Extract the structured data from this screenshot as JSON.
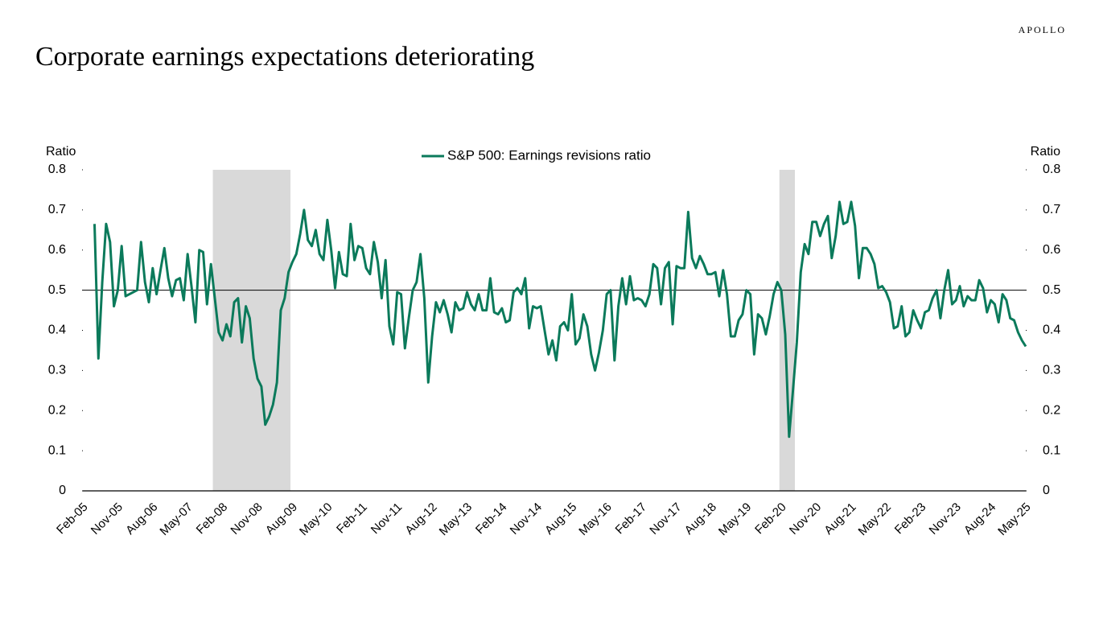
{
  "brand": "APOLLO",
  "chart_data": {
    "type": "line",
    "title": "Corporate earnings expectations deteriorating",
    "ylabel": "Ratio",
    "y2label": "Ratio",
    "xlim": [
      "2005-02",
      "2025-05"
    ],
    "categories": [
      "Feb-05",
      null,
      null,
      null,
      null,
      null,
      null,
      null,
      null,
      "Nov-05",
      null,
      null,
      null,
      null,
      null,
      null,
      null,
      null,
      "Aug-06",
      null,
      null,
      null,
      null,
      null,
      null,
      null,
      null,
      "May-07",
      null,
      null,
      null,
      null,
      null,
      null,
      null,
      null,
      "Feb-08",
      null,
      null,
      null,
      null,
      null,
      null,
      null,
      null,
      "Nov-08",
      null,
      null,
      null,
      null,
      null,
      null,
      null,
      null,
      "Aug-09",
      null,
      null,
      null,
      null,
      null,
      null,
      null,
      null,
      "May-10",
      null,
      null,
      null,
      null,
      null,
      null,
      null,
      null,
      "Feb-11",
      null,
      null,
      null,
      null,
      null,
      null,
      null,
      null,
      "Nov-11",
      null,
      null,
      null,
      null,
      null,
      null,
      null,
      null,
      "Aug-12",
      null,
      null,
      null,
      null,
      null,
      null,
      null,
      null,
      "May-13",
      null,
      null,
      null,
      null,
      null,
      null,
      null,
      null,
      "Feb-14",
      null,
      null,
      null,
      null,
      null,
      null,
      null,
      null,
      "Nov-14",
      null,
      null,
      null,
      null,
      null,
      null,
      null,
      null,
      "Aug-15",
      null,
      null,
      null,
      null,
      null,
      null,
      null,
      null,
      "May-16",
      null,
      null,
      null,
      null,
      null,
      null,
      null,
      null,
      "Feb-17",
      null,
      null,
      null,
      null,
      null,
      null,
      null,
      null,
      "Nov-17",
      null,
      null,
      null,
      null,
      null,
      null,
      null,
      null,
      "Aug-18",
      null,
      null,
      null,
      null,
      null,
      null,
      null,
      null,
      "May-19",
      null,
      null,
      null,
      null,
      null,
      null,
      null,
      null,
      "Feb-20",
      null,
      null,
      null,
      null,
      null,
      null,
      null,
      null,
      "Nov-20",
      null,
      null,
      null,
      null,
      null,
      null,
      null,
      null,
      "Aug-21",
      null,
      null,
      null,
      null,
      null,
      null,
      null,
      null,
      "May-22",
      null,
      null,
      null,
      null,
      null,
      null,
      null,
      null,
      "Feb-23",
      null,
      null,
      null,
      null,
      null,
      null,
      null,
      null,
      "Nov-23",
      null,
      null,
      null,
      null,
      null,
      null,
      null,
      null,
      "Aug-24",
      null,
      null,
      null,
      null,
      null,
      null,
      null,
      null,
      "May-25"
    ],
    "series": [
      {
        "name": "S&P 500: Earnings revisions ratio",
        "color": "#0b7a5b",
        "values": [
          null,
          null,
          null,
          0.665,
          0.33,
          0.52,
          0.665,
          0.62,
          0.46,
          0.5,
          0.61,
          0.485,
          0.49,
          0.495,
          0.5,
          0.62,
          0.52,
          0.47,
          0.555,
          0.49,
          0.55,
          0.605,
          0.53,
          0.485,
          0.525,
          0.53,
          0.475,
          0.59,
          0.51,
          0.42,
          0.6,
          0.595,
          0.465,
          0.565,
          0.48,
          0.395,
          0.375,
          0.415,
          0.385,
          0.47,
          0.48,
          0.37,
          0.46,
          0.43,
          0.33,
          0.28,
          0.26,
          0.165,
          0.185,
          0.215,
          0.27,
          0.45,
          0.48,
          0.545,
          0.57,
          0.59,
          0.64,
          0.7,
          0.625,
          0.61,
          0.65,
          0.59,
          0.575,
          0.675,
          0.6,
          0.505,
          0.595,
          0.54,
          0.535,
          0.665,
          0.575,
          0.61,
          0.605,
          0.555,
          0.54,
          0.62,
          0.57,
          0.48,
          0.575,
          0.41,
          0.365,
          0.495,
          0.49,
          0.355,
          0.43,
          0.5,
          0.52,
          0.59,
          0.48,
          0.27,
          0.385,
          0.47,
          0.445,
          0.475,
          0.44,
          0.395,
          0.47,
          0.45,
          0.455,
          0.495,
          0.465,
          0.45,
          0.49,
          0.45,
          0.45,
          0.53,
          0.445,
          0.44,
          0.455,
          0.42,
          0.425,
          0.495,
          0.505,
          0.49,
          0.53,
          0.405,
          0.46,
          0.455,
          0.46,
          0.4,
          0.34,
          0.375,
          0.325,
          0.41,
          0.42,
          0.4,
          0.49,
          0.365,
          0.38,
          0.44,
          0.41,
          0.34,
          0.3,
          0.345,
          0.4,
          0.49,
          0.5,
          0.325,
          0.46,
          0.53,
          0.465,
          0.535,
          0.475,
          0.48,
          0.475,
          0.46,
          0.49,
          0.565,
          0.555,
          0.465,
          0.555,
          0.57,
          0.415,
          0.56,
          0.555,
          0.555,
          0.695,
          0.58,
          0.555,
          0.585,
          0.565,
          0.54,
          0.54,
          0.545,
          0.485,
          0.55,
          0.49,
          0.385,
          0.385,
          0.425,
          0.44,
          0.5,
          0.49,
          0.34,
          0.44,
          0.43,
          0.39,
          0.435,
          0.49,
          0.52,
          0.5,
          0.39,
          0.135,
          0.25,
          0.37,
          0.545,
          0.615,
          0.59,
          0.67,
          0.67,
          0.635,
          0.665,
          0.685,
          0.58,
          0.635,
          0.72,
          0.665,
          0.67,
          0.72,
          0.66,
          0.53,
          0.605,
          0.605,
          0.59,
          0.565,
          0.505,
          0.51,
          0.495,
          0.47,
          0.405,
          0.41,
          0.46,
          0.385,
          0.395,
          0.45,
          0.425,
          0.405,
          0.445,
          0.45,
          0.48,
          0.5,
          0.43,
          0.5,
          0.55,
          0.465,
          0.475,
          0.51,
          0.46,
          0.485,
          0.475,
          0.475,
          0.525,
          0.505,
          0.445,
          0.475,
          0.465,
          0.42,
          0.49,
          0.475,
          0.43,
          0.425,
          0.395,
          0.375,
          0.36
        ]
      }
    ],
    "ylim": [
      0,
      0.8
    ],
    "yticks": [
      0,
      0.1,
      0.2,
      0.3,
      0.4,
      0.5,
      0.6,
      0.7,
      0.8
    ],
    "y2lim": [
      0,
      0.8
    ],
    "y2ticks": [
      0,
      0.1,
      0.2,
      0.3,
      0.4,
      0.5,
      0.6,
      0.7,
      0.8
    ],
    "reference_line": 0.5,
    "shaded_periods": [
      {
        "start": "2007-12",
        "end": "2009-07"
      },
      {
        "start": "2020-02",
        "end": "2020-05"
      }
    ],
    "shade_color": "#d9d9d9",
    "legend": "top"
  }
}
